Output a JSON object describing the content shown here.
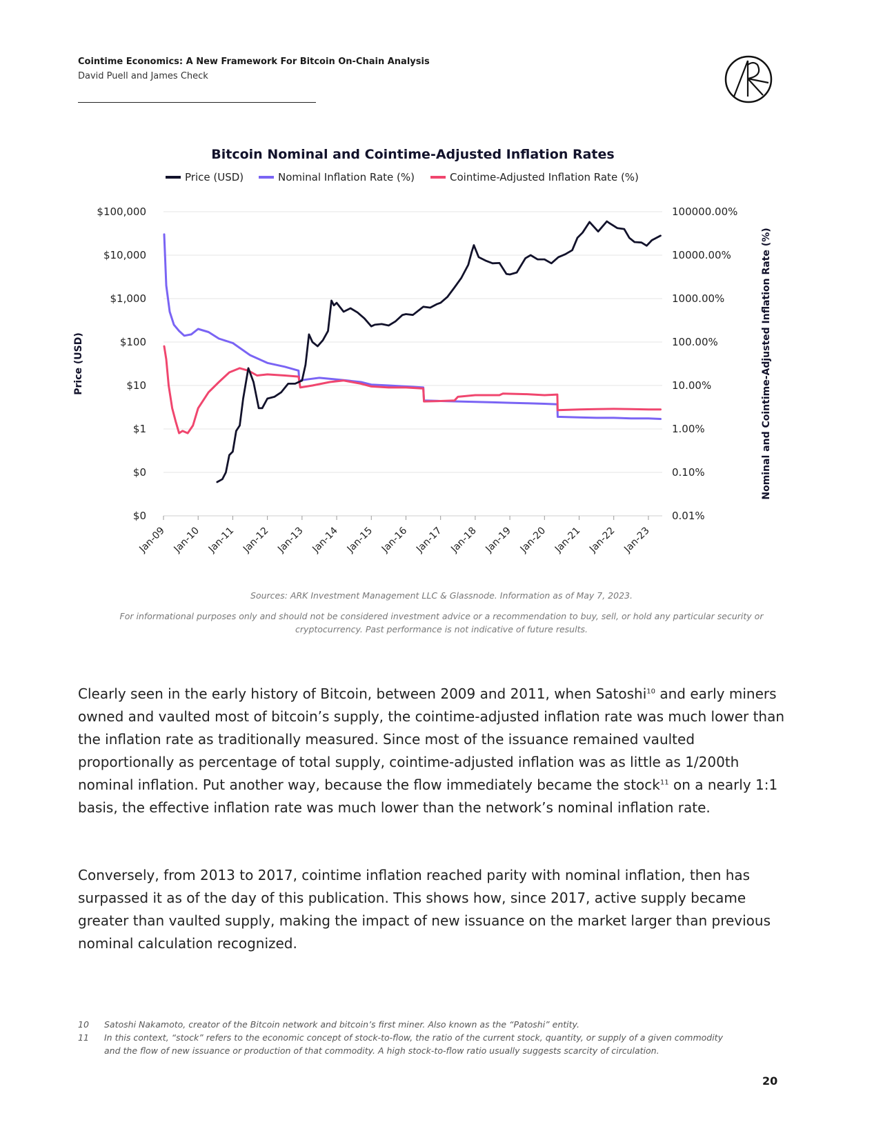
{
  "header": {
    "title": "Cointime Economics: A New Framework For Bitcoin On-Chain Analysis",
    "authors": "David Puell and James Check"
  },
  "logo": {
    "icon": "ark-logo-icon"
  },
  "chart_data": {
    "type": "line",
    "title": "Bitcoin Nominal and Cointime-Adjusted Inflation Rates",
    "ylabel_left": "Price (USD)",
    "ylabel_right": "Nominal and Cointime-Adjusted Inflation Rate (%)",
    "legend_placement": "top-center",
    "left_axis_scale": "log",
    "right_axis_scale": "log",
    "left_ticks": [
      "$100,000",
      "$10,000",
      "$1,000",
      "$100",
      "$10",
      "$1",
      "$0",
      "$0"
    ],
    "right_ticks": [
      "100000.00%",
      "10000.00%",
      "1000.00%",
      "100.00%",
      "10.00%",
      "1.00%",
      "0.10%",
      "0.01%"
    ],
    "x_ticks": [
      "Jan-09",
      "Jan-10",
      "Jan-11",
      "Jan-12",
      "Jan-13",
      "Jan-14",
      "Jan-15",
      "Jan-16",
      "Jan-17",
      "Jan-18",
      "Jan-19",
      "Jan-20",
      "Jan-21",
      "Jan-22",
      "Jan-23"
    ],
    "xlim": [
      2009.0,
      2023.4
    ],
    "left_ylim": [
      0.01,
      100000
    ],
    "right_ylim": [
      0.01,
      100000
    ],
    "series": [
      {
        "name": "Price (USD)",
        "color": "#12122b",
        "axis": "left",
        "x": [
          2010.55,
          2010.7,
          2010.8,
          2010.9,
          2011.0,
          2011.1,
          2011.2,
          2011.3,
          2011.45,
          2011.6,
          2011.75,
          2011.85,
          2012.0,
          2012.2,
          2012.4,
          2012.6,
          2012.8,
          2013.0,
          2013.1,
          2013.2,
          2013.3,
          2013.45,
          2013.6,
          2013.75,
          2013.85,
          2013.92,
          2014.0,
          2014.2,
          2014.4,
          2014.6,
          2014.8,
          2015.0,
          2015.1,
          2015.3,
          2015.5,
          2015.7,
          2015.9,
          2016.0,
          2016.2,
          2016.4,
          2016.5,
          2016.7,
          2016.9,
          2017.0,
          2017.2,
          2017.4,
          2017.6,
          2017.8,
          2017.9,
          2017.96,
          2018.1,
          2018.3,
          2018.5,
          2018.7,
          2018.9,
          2019.0,
          2019.2,
          2019.45,
          2019.6,
          2019.8,
          2020.0,
          2020.2,
          2020.4,
          2020.6,
          2020.8,
          2020.95,
          2021.1,
          2021.3,
          2021.55,
          2021.8,
          2021.87,
          2022.1,
          2022.3,
          2022.45,
          2022.6,
          2022.8,
          2022.95,
          2023.1,
          2023.35
        ],
        "y": [
          0.06,
          0.07,
          0.1,
          0.25,
          0.3,
          0.9,
          1.2,
          5,
          25,
          12,
          3,
          3,
          5,
          5.5,
          7,
          11,
          11,
          13,
          30,
          150,
          100,
          80,
          110,
          180,
          900,
          700,
          800,
          500,
          600,
          480,
          350,
          230,
          250,
          260,
          240,
          300,
          420,
          440,
          420,
          560,
          650,
          620,
          750,
          800,
          1100,
          1800,
          3000,
          6000,
          12000,
          17000,
          9000,
          7500,
          6500,
          6600,
          3700,
          3600,
          4000,
          8500,
          10000,
          8000,
          8000,
          6500,
          9000,
          10500,
          13000,
          25000,
          33000,
          58000,
          35000,
          60000,
          55000,
          42000,
          40000,
          25000,
          20000,
          19500,
          16500,
          22000,
          28000
        ]
      },
      {
        "name": "Nominal Inflation Rate (%)",
        "color": "#7a64f4",
        "axis": "right",
        "x": [
          2009.02,
          2009.08,
          2009.18,
          2009.3,
          2009.45,
          2009.6,
          2009.8,
          2010.0,
          2010.3,
          2010.6,
          2011.0,
          2011.5,
          2012.0,
          2012.5,
          2012.9,
          2012.92,
          2013.2,
          2013.5,
          2013.9,
          2014.3,
          2014.7,
          2015.0,
          2015.5,
          2016.0,
          2016.5,
          2016.52,
          2017.0,
          2017.5,
          2018.0,
          2018.5,
          2019.0,
          2019.5,
          2020.0,
          2020.37,
          2020.38,
          2021.0,
          2021.5,
          2022.0,
          2022.5,
          2023.0,
          2023.35
        ],
        "y": [
          30000,
          2000,
          500,
          250,
          180,
          140,
          150,
          200,
          170,
          120,
          95,
          50,
          33,
          27,
          22,
          13,
          14,
          15,
          14,
          13,
          12,
          10.5,
          10,
          9.5,
          9,
          4.5,
          4.4,
          4.3,
          4.2,
          4.1,
          4,
          3.9,
          3.8,
          3.7,
          1.9,
          1.85,
          1.8,
          1.8,
          1.75,
          1.75,
          1.7
        ]
      },
      {
        "name": "Cointime-Adjusted Inflation Rate (%)",
        "color": "#f0466e",
        "axis": "right",
        "x": [
          2009.02,
          2009.08,
          2009.15,
          2009.25,
          2009.35,
          2009.45,
          2009.55,
          2009.7,
          2009.85,
          2010.0,
          2010.3,
          2010.6,
          2010.9,
          2011.2,
          2011.45,
          2011.7,
          2012.0,
          2012.5,
          2012.9,
          2012.95,
          2013.3,
          2013.8,
          2014.2,
          2014.7,
          2015.0,
          2015.5,
          2016.0,
          2016.5,
          2016.52,
          2017.0,
          2017.4,
          2017.5,
          2018.0,
          2018.7,
          2018.8,
          2019.5,
          2020.0,
          2020.37,
          2020.38,
          2021.0,
          2021.5,
          2022.0,
          2022.5,
          2023.0,
          2023.35
        ],
        "y": [
          80,
          40,
          10,
          3,
          1.5,
          0.8,
          0.9,
          0.8,
          1.2,
          3,
          7,
          12,
          20,
          25,
          22,
          17,
          18,
          17,
          16,
          9,
          10,
          12,
          13,
          11,
          9.5,
          9,
          9,
          8.5,
          4.3,
          4.4,
          4.5,
          5.5,
          6,
          6,
          6.5,
          6.3,
          6,
          6.2,
          2.7,
          2.8,
          2.85,
          2.9,
          2.85,
          2.8,
          2.8
        ]
      }
    ]
  },
  "sources": "Sources: ARK Investment Management LLC & Glassnode. Information as of May 7, 2023.",
  "disclaimer": "For informational purposes only and should not be considered investment advice or a recommendation to buy, sell, or hold any particular security or cryptocurrency. Past performance is not indicative of future results.",
  "body": {
    "p1": {
      "a": "Clearly seen in the early history of Bitcoin, between 2009 and 2011, when Satoshi",
      "sup1": "10",
      "b": " and early miners owned and vaulted most of bitcoin’s supply, the cointime-adjusted inflation rate was much lower than the inflation rate as traditionally measured. Since most of the issuance remained vaulted proportionally as percentage of total supply, cointime-adjusted inflation was as little as 1/200th nominal inflation. Put another way, because the flow immediately became the stock",
      "sup2": "11",
      "c": " on a nearly 1:1 basis, the effective inflation rate was much lower than the network’s nominal inflation rate."
    },
    "p2": "Conversely, from 2013 to 2017, cointime inflation reached parity with nominal inflation, then has surpassed it as of the day of this publication. This shows how, since 2017, active supply became greater than vaulted supply, making the impact of new issuance on the market larger than previous nominal calculation recognized."
  },
  "footnotes": [
    {
      "num": "10",
      "text": "Satoshi Nakamoto, creator of the Bitcoin network and bitcoin’s first miner. Also known as the “Patoshi” entity."
    },
    {
      "num": "11",
      "text": "In this context, “stock” refers to the economic concept of stock-to-flow, the ratio of the current stock, quantity, or supply of a given commodity and the flow of new issuance or production of that commodity. A high stock-to-flow ratio usually suggests scarcity of circulation."
    }
  ],
  "page_number": "20"
}
